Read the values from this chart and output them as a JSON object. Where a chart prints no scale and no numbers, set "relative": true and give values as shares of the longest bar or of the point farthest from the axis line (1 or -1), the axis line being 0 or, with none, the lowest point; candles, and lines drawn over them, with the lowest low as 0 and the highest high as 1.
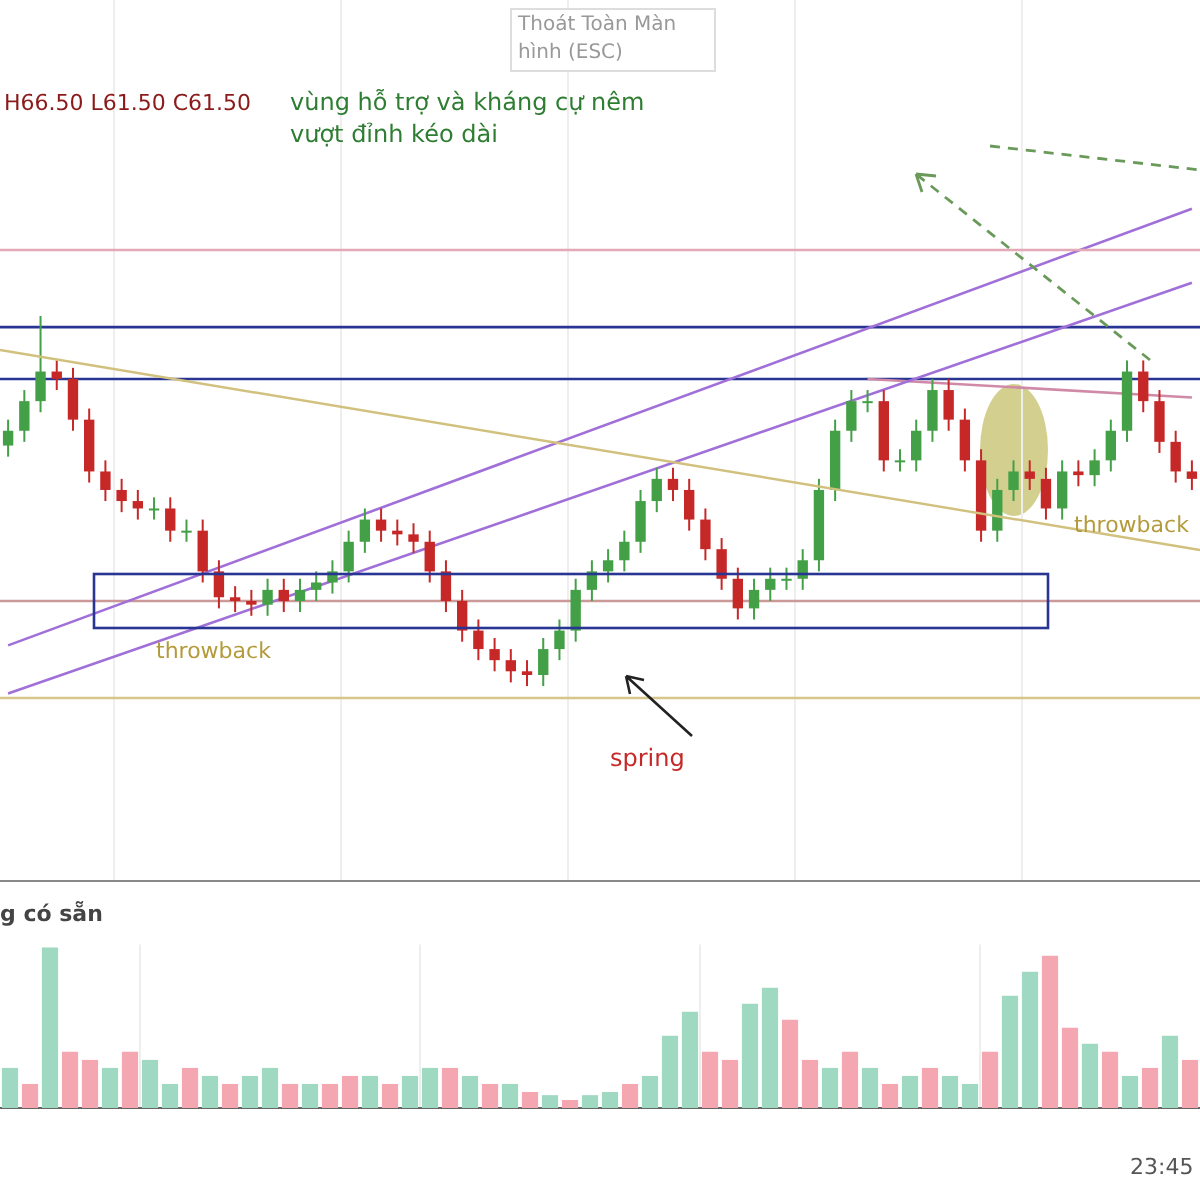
{
  "chart_data": [
    {
      "type": "candlestick",
      "relative": true,
      "grid": "x",
      "series": [
        {
          "type": "line",
          "color": "#a070d8",
          "values": [
            0.11,
            null,
            null,
            null,
            null,
            null,
            null,
            null,
            null,
            null,
            null,
            null,
            null,
            null,
            null,
            null,
            null,
            null,
            null,
            null,
            null,
            null,
            null,
            null,
            null,
            null,
            null,
            null,
            null,
            null,
            null,
            null,
            null,
            null,
            null,
            null,
            null,
            null,
            null,
            null,
            null,
            null,
            null,
            null,
            null,
            null,
            null,
            null,
            null,
            null,
            null,
            null,
            null,
            null,
            null,
            null,
            null,
            null,
            null,
            null,
            null,
            null,
            null,
            null,
            null,
            null,
            null,
            null,
            null,
            null,
            null,
            null,
            null,
            1.29
          ]
        },
        {
          "type": "line",
          "color": "#a070d8",
          "values": [
            -0.02,
            null,
            null,
            null,
            null,
            null,
            null,
            null,
            null,
            null,
            null,
            null,
            null,
            null,
            null,
            null,
            null,
            null,
            null,
            null,
            null,
            null,
            null,
            null,
            null,
            null,
            null,
            null,
            null,
            null,
            null,
            null,
            null,
            null,
            null,
            null,
            null,
            null,
            null,
            null,
            null,
            null,
            null,
            null,
            null,
            null,
            null,
            null,
            null,
            null,
            null,
            null,
            null,
            null,
            null,
            null,
            null,
            null,
            null,
            null,
            null,
            null,
            null,
            null,
            null,
            null,
            null,
            null,
            null,
            null,
            null,
            null,
            null,
            1.09
          ]
        },
        {
          "type": "line",
          "color": "#d08aa8",
          "values": [
            null,
            null,
            null,
            null,
            null,
            null,
            null,
            null,
            null,
            null,
            null,
            null,
            null,
            null,
            null,
            null,
            null,
            null,
            null,
            null,
            null,
            null,
            null,
            null,
            null,
            null,
            null,
            null,
            null,
            null,
            null,
            null,
            null,
            null,
            null,
            null,
            null,
            null,
            null,
            null,
            null,
            null,
            null,
            null,
            null,
            null,
            null,
            null,
            null,
            null,
            null,
            null,
            null,
            0.83,
            null,
            null,
            null,
            null,
            null,
            null,
            null,
            null,
            null,
            null,
            null,
            null,
            null,
            null,
            null,
            null,
            null,
            null,
            null,
            0.78
          ]
        }
      ],
      "ref_lines": [
        {
          "axis": "y",
          "value": 0.97,
          "color": "#283593"
        },
        {
          "axis": "y",
          "value": 0.83,
          "color": "#283593"
        },
        {
          "axis": "y",
          "value": 0.23,
          "color": "#cc9999"
        }
      ],
      "categories": [
        null,
        null,
        null,
        null,
        null,
        null,
        null,
        null,
        null,
        null,
        null,
        null,
        null,
        null,
        null,
        null,
        null,
        null,
        null,
        null,
        null,
        null,
        null,
        null,
        null,
        null,
        null,
        null,
        null,
        null,
        null,
        null,
        null,
        null,
        null,
        null,
        null,
        null,
        null,
        null,
        null,
        null,
        null,
        null,
        null,
        null,
        null,
        null,
        null,
        null,
        null,
        null,
        null,
        null,
        null,
        null,
        null,
        null,
        null,
        null,
        null,
        null,
        null,
        null,
        null,
        null,
        null,
        null,
        null,
        null,
        null,
        null,
        null,
        null
      ],
      "ohlc": [
        [
          0.65,
          0.72,
          0.62,
          0.69
        ],
        [
          0.69,
          0.8,
          0.66,
          0.77
        ],
        [
          0.77,
          1.0,
          0.74,
          0.85
        ],
        [
          0.85,
          0.88,
          0.8,
          0.83
        ],
        [
          0.83,
          0.86,
          0.69,
          0.72
        ],
        [
          0.72,
          0.75,
          0.55,
          0.58
        ],
        [
          0.58,
          0.61,
          0.5,
          0.53
        ],
        [
          0.53,
          0.56,
          0.47,
          0.5
        ],
        [
          0.5,
          0.53,
          0.45,
          0.48
        ],
        [
          0.48,
          0.51,
          0.45,
          0.48
        ],
        [
          0.48,
          0.51,
          0.39,
          0.42
        ],
        [
          0.42,
          0.45,
          0.39,
          0.42
        ],
        [
          0.42,
          0.45,
          0.28,
          0.31
        ],
        [
          0.31,
          0.34,
          0.21,
          0.24
        ],
        [
          0.24,
          0.27,
          0.2,
          0.23
        ],
        [
          0.23,
          0.26,
          0.19,
          0.22
        ],
        [
          0.22,
          0.29,
          0.19,
          0.26
        ],
        [
          0.26,
          0.29,
          0.2,
          0.23
        ],
        [
          0.23,
          0.29,
          0.2,
          0.26
        ],
        [
          0.26,
          0.31,
          0.23,
          0.28
        ],
        [
          0.28,
          0.34,
          0.25,
          0.31
        ],
        [
          0.31,
          0.42,
          0.28,
          0.39
        ],
        [
          0.39,
          0.48,
          0.36,
          0.45
        ],
        [
          0.45,
          0.48,
          0.39,
          0.42
        ],
        [
          0.42,
          0.45,
          0.38,
          0.41
        ],
        [
          0.41,
          0.44,
          0.36,
          0.39
        ],
        [
          0.39,
          0.42,
          0.28,
          0.31
        ],
        [
          0.31,
          0.34,
          0.2,
          0.23
        ],
        [
          0.23,
          0.26,
          0.12,
          0.15
        ],
        [
          0.15,
          0.18,
          0.07,
          0.1
        ],
        [
          0.1,
          0.13,
          0.04,
          0.07
        ],
        [
          0.07,
          0.1,
          0.01,
          0.04
        ],
        [
          0.04,
          0.07,
          0.0,
          0.03
        ],
        [
          0.03,
          0.13,
          0.0,
          0.1
        ],
        [
          0.1,
          0.18,
          0.07,
          0.15
        ],
        [
          0.15,
          0.29,
          0.12,
          0.26
        ],
        [
          0.26,
          0.34,
          0.23,
          0.31
        ],
        [
          0.31,
          0.37,
          0.28,
          0.34
        ],
        [
          0.34,
          0.42,
          0.31,
          0.39
        ],
        [
          0.39,
          0.53,
          0.36,
          0.5
        ],
        [
          0.5,
          0.59,
          0.47,
          0.56
        ],
        [
          0.56,
          0.59,
          0.5,
          0.53
        ],
        [
          0.53,
          0.56,
          0.42,
          0.45
        ],
        [
          0.45,
          0.48,
          0.34,
          0.37
        ],
        [
          0.37,
          0.4,
          0.26,
          0.29
        ],
        [
          0.29,
          0.32,
          0.18,
          0.21
        ],
        [
          0.21,
          0.29,
          0.18,
          0.26
        ],
        [
          0.26,
          0.32,
          0.23,
          0.29
        ],
        [
          0.29,
          0.32,
          0.26,
          0.29
        ],
        [
          0.29,
          0.37,
          0.26,
          0.34
        ],
        [
          0.34,
          0.56,
          0.31,
          0.53
        ],
        [
          0.53,
          0.72,
          0.5,
          0.69
        ],
        [
          0.69,
          0.8,
          0.66,
          0.77
        ],
        [
          0.77,
          0.8,
          0.74,
          0.77
        ],
        [
          0.77,
          0.8,
          0.58,
          0.61
        ],
        [
          0.61,
          0.64,
          0.58,
          0.61
        ],
        [
          0.61,
          0.72,
          0.58,
          0.69
        ],
        [
          0.69,
          0.83,
          0.66,
          0.8
        ],
        [
          0.8,
          0.83,
          0.69,
          0.72
        ],
        [
          0.72,
          0.75,
          0.58,
          0.61
        ],
        [
          0.61,
          0.64,
          0.39,
          0.42
        ],
        [
          0.42,
          0.56,
          0.39,
          0.53
        ],
        [
          0.53,
          0.61,
          0.5,
          0.58
        ],
        [
          0.58,
          0.61,
          0.53,
          0.56
        ],
        [
          0.56,
          0.59,
          0.45,
          0.48
        ],
        [
          0.48,
          0.61,
          0.45,
          0.58
        ],
        [
          0.58,
          0.61,
          0.54,
          0.57
        ],
        [
          0.57,
          0.64,
          0.54,
          0.61
        ],
        [
          0.61,
          0.72,
          0.58,
          0.69
        ],
        [
          0.69,
          0.88,
          0.66,
          0.85
        ],
        [
          0.85,
          0.88,
          0.74,
          0.77
        ],
        [
          0.77,
          0.8,
          0.63,
          0.66
        ],
        [
          0.66,
          0.69,
          0.55,
          0.58
        ],
        [
          0.58,
          0.61,
          0.53,
          0.56
        ]
      ],
      "colors": [
        "#43a047",
        "#43a047",
        "#43a047",
        "#c62828",
        "#c62828",
        "#c62828",
        "#c62828",
        "#c62828",
        "#c62828",
        "#43a047",
        "#c62828",
        "#43a047",
        "#c62828",
        "#c62828",
        "#c62828",
        "#c62828",
        "#43a047",
        "#c62828",
        "#43a047",
        "#43a047",
        "#43a047",
        "#43a047",
        "#43a047",
        "#c62828",
        "#c62828",
        "#c62828",
        "#c62828",
        "#c62828",
        "#c62828",
        "#c62828",
        "#c62828",
        "#c62828",
        "#c62828",
        "#43a047",
        "#43a047",
        "#43a047",
        "#43a047",
        "#43a047",
        "#43a047",
        "#43a047",
        "#43a047",
        "#c62828",
        "#c62828",
        "#c62828",
        "#c62828",
        "#c62828",
        "#43a047",
        "#43a047",
        "#43a047",
        "#43a047",
        "#43a047",
        "#43a047",
        "#43a047",
        "#43a047",
        "#c62828",
        "#43a047",
        "#43a047",
        "#43a047",
        "#c62828",
        "#c62828",
        "#c62828",
        "#43a047",
        "#43a047",
        "#c62828",
        "#c62828",
        "#43a047",
        "#c62828",
        "#43a047",
        "#43a047",
        "#43a047",
        "#c62828",
        "#c62828",
        "#c62828",
        "#c62828"
      ],
      "annotations": [
        "H66.50 L61.50 C61.50",
        "Thoát Toàn Màn hình (ESC)",
        "vùng hỗ trợ và kháng cự nêm",
        "vượt đỉnh kéo dài",
        "throwback",
        "spring",
        "throwback"
      ]
    },
    {
      "type": "bar",
      "relative": true,
      "grid": "x",
      "title": "g có sẵn",
      "categories": [
        null,
        null,
        null,
        null,
        null,
        null,
        null,
        null,
        null,
        null,
        null,
        null,
        null,
        null,
        null,
        null,
        null,
        null,
        null,
        null,
        null,
        null,
        null,
        null,
        null,
        null,
        null,
        null,
        null,
        null,
        null,
        null,
        null,
        null,
        null,
        null,
        null,
        null,
        null,
        null,
        null,
        null,
        null,
        null,
        null,
        null,
        null,
        null,
        null,
        null,
        null,
        null,
        null,
        null,
        null,
        null,
        null,
        null,
        null,
        null
      ],
      "values": [
        0.25,
        0.15,
        1.0,
        0.35,
        0.3,
        0.25,
        0.35,
        0.3,
        0.15,
        0.25,
        0.2,
        0.15,
        0.2,
        0.25,
        0.15,
        0.15,
        0.15,
        0.2,
        0.2,
        0.15,
        0.2,
        0.25,
        0.25,
        0.2,
        0.15,
        0.15,
        0.1,
        0.08,
        0.05,
        0.08,
        0.1,
        0.15,
        0.2,
        0.45,
        0.6,
        0.35,
        0.3,
        0.65,
        0.75,
        0.55,
        0.3,
        0.25,
        0.35,
        0.25,
        0.15,
        0.2,
        0.25,
        0.2,
        0.15,
        0.35,
        0.7,
        0.85,
        0.95,
        0.5,
        0.4,
        0.35,
        0.2,
        0.25,
        0.45,
        0.3
      ],
      "colors": [
        "#9fd9c2",
        "#f4a7b0",
        "#9fd9c2",
        "#f4a7b0",
        "#f4a7b0",
        "#9fd9c2",
        "#f4a7b0",
        "#9fd9c2",
        "#9fd9c2",
        "#f4a7b0",
        "#9fd9c2",
        "#f4a7b0",
        "#9fd9c2",
        "#9fd9c2",
        "#f4a7b0",
        "#9fd9c2",
        "#f4a7b0",
        "#f4a7b0",
        "#9fd9c2",
        "#f4a7b0",
        "#9fd9c2",
        "#9fd9c2",
        "#f4a7b0",
        "#9fd9c2",
        "#f4a7b0",
        "#9fd9c2",
        "#f4a7b0",
        "#9fd9c2",
        "#f4a7b0",
        "#9fd9c2",
        "#9fd9c2",
        "#f4a7b0",
        "#9fd9c2",
        "#9fd9c2",
        "#9fd9c2",
        "#f4a7b0",
        "#f4a7b0",
        "#9fd9c2",
        "#9fd9c2",
        "#f4a7b0",
        "#f4a7b0",
        "#9fd9c2",
        "#f4a7b0",
        "#9fd9c2",
        "#f4a7b0",
        "#9fd9c2",
        "#f4a7b0",
        "#9fd9c2",
        "#9fd9c2",
        "#f4a7b0",
        "#9fd9c2",
        "#9fd9c2",
        "#f4a7b0",
        "#f4a7b0",
        "#9fd9c2",
        "#f4a7b0",
        "#9fd9c2",
        "#f4a7b0",
        "#9fd9c2",
        "#f4a7b0"
      ],
      "annotations": [
        "23:45"
      ]
    }
  ]
}
